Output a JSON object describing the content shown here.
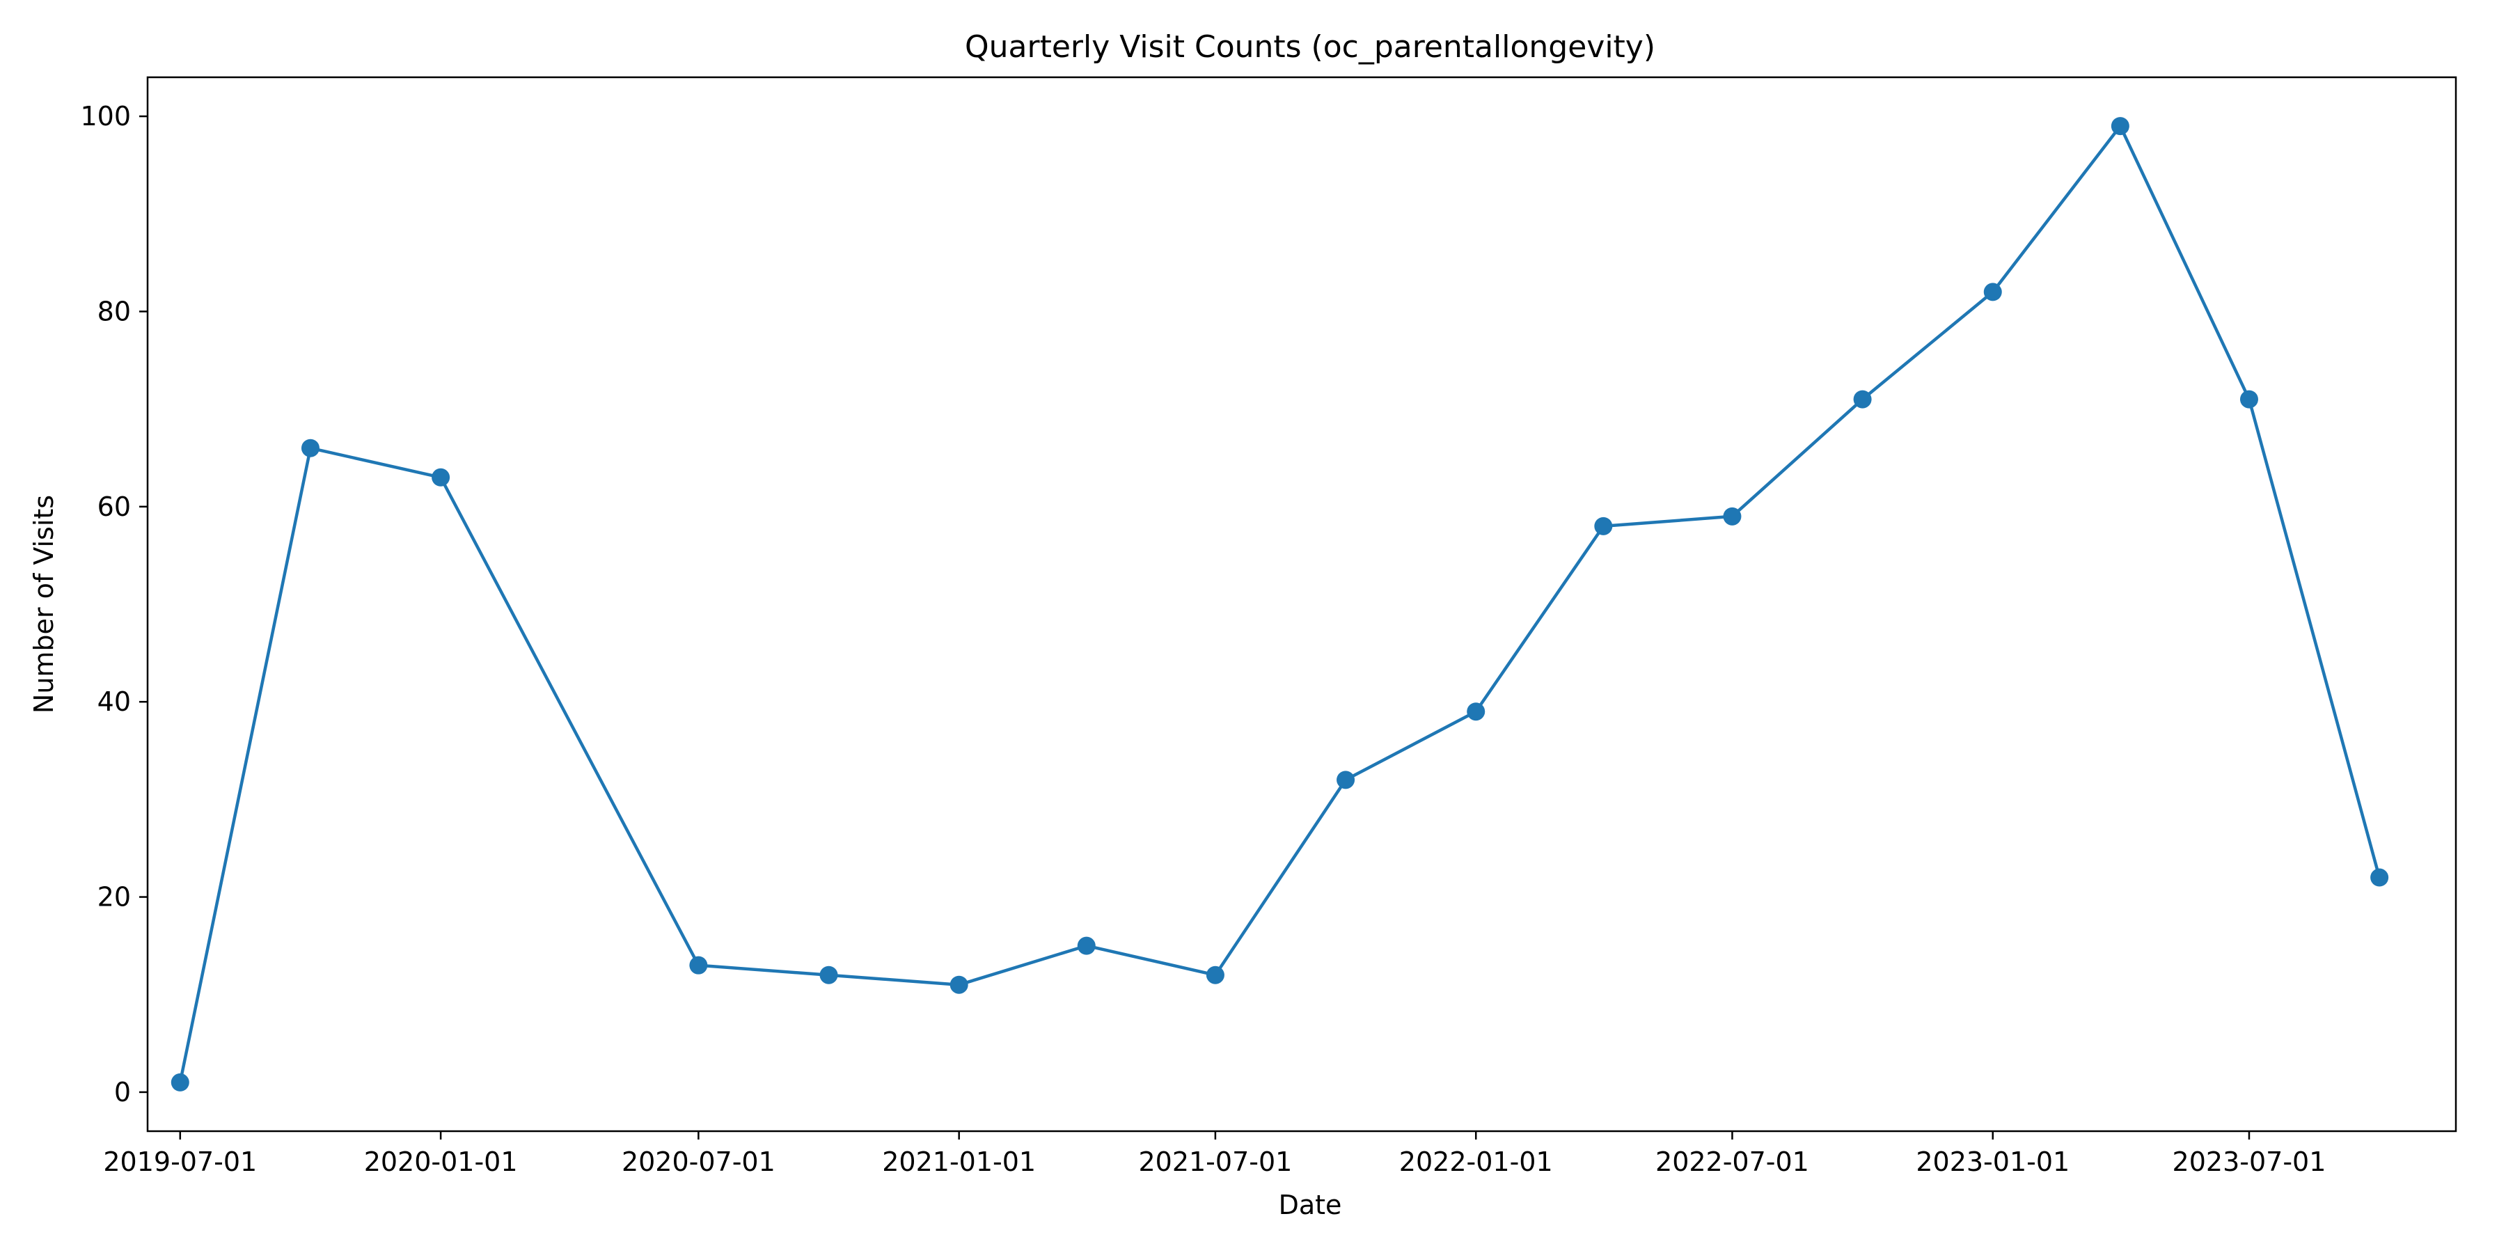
{
  "chart_data": {
    "type": "line",
    "title": "Quarterly Visit Counts (oc_parentallongevity)",
    "xlabel": "Date",
    "ylabel": "Number of Visits",
    "x_type": "date",
    "xlim": [
      "2019-06-08",
      "2023-11-24"
    ],
    "ylim": [
      -4,
      104
    ],
    "x_ticks": [
      "2019-07-01",
      "2020-01-01",
      "2020-07-01",
      "2021-01-01",
      "2021-07-01",
      "2022-01-01",
      "2022-07-01",
      "2023-01-01",
      "2023-07-01"
    ],
    "y_ticks": [
      0,
      20,
      40,
      60,
      80,
      100
    ],
    "grid": false,
    "legend": "none",
    "color": "#1f77b4",
    "marker": "circle",
    "series": [
      {
        "x": [
          "2019-07-01",
          "2019-10-01",
          "2020-01-01",
          "2020-07-01",
          "2020-10-01",
          "2021-01-01",
          "2021-04-01",
          "2021-07-01",
          "2021-10-01",
          "2022-01-01",
          "2022-04-01",
          "2022-07-01",
          "2022-10-01",
          "2023-01-01",
          "2023-04-01",
          "2023-07-01",
          "2023-10-01"
        ],
        "values": [
          1,
          66,
          63,
          13,
          12,
          11,
          15,
          12,
          32,
          39,
          58,
          59,
          71,
          82,
          99,
          71,
          22
        ]
      }
    ]
  }
}
